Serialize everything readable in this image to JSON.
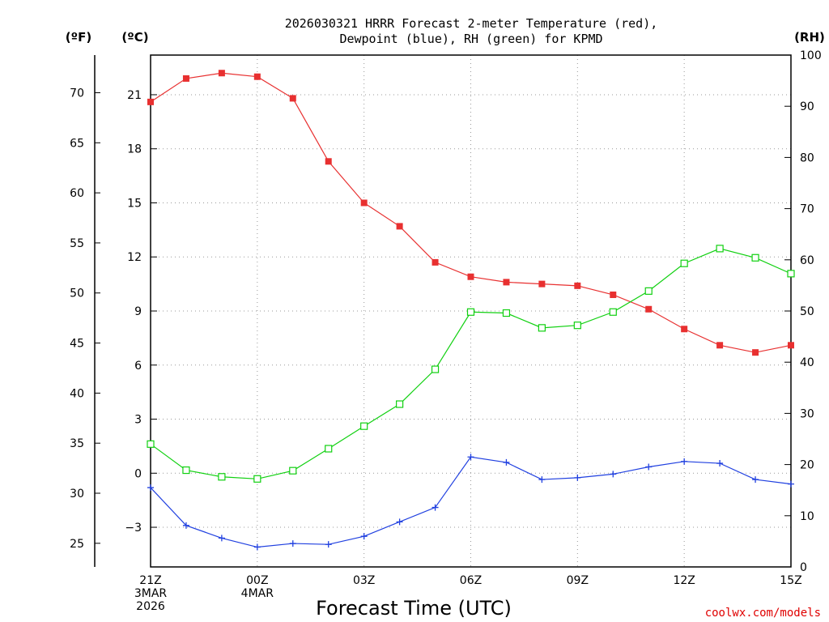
{
  "chart_data": {
    "type": "line",
    "title_line1": "2026030321 HRRR Forecast 2-meter Temperature (red),",
    "title_line2": "Dewpoint (blue), RH (green) for KPMD",
    "xlabel": "Forecast Time (UTC)",
    "credit": "coolwx.com/models",
    "unit_f": "(ºF)",
    "unit_c": "(ºC)",
    "unit_rh": "(RH)",
    "hours": [
      0,
      1,
      2,
      3,
      4,
      5,
      6,
      7,
      8,
      9,
      10,
      11,
      12,
      13,
      14,
      15,
      16,
      17,
      18
    ],
    "x_ticks": [
      {
        "hour": 0,
        "lines": [
          "21Z",
          "3MAR",
          "2026"
        ]
      },
      {
        "hour": 3,
        "lines": [
          "00Z",
          "4MAR"
        ]
      },
      {
        "hour": 6,
        "lines": [
          "03Z"
        ]
      },
      {
        "hour": 9,
        "lines": [
          "06Z"
        ]
      },
      {
        "hour": 12,
        "lines": [
          "09Z"
        ]
      },
      {
        "hour": 15,
        "lines": [
          "12Z"
        ]
      },
      {
        "hour": 18,
        "lines": [
          "15Z"
        ]
      }
    ],
    "celsius_ticks": [
      "-3",
      "0",
      "3",
      "6",
      "9",
      "12",
      "15",
      "18",
      "21"
    ],
    "fahrenheit_ticks": [
      "25",
      "30",
      "35",
      "40",
      "45",
      "50",
      "55",
      "60",
      "65",
      "70"
    ],
    "rh_ticks": [
      "0",
      "10",
      "20",
      "30",
      "40",
      "50",
      "60",
      "70",
      "80",
      "90",
      "100"
    ],
    "ylim_c": [
      -5.2,
      23.2
    ],
    "ylim_rh": [
      0,
      100
    ],
    "series": [
      {
        "name": "Temperature",
        "axis": "celsius",
        "color": "#e83030",
        "marker": "filled-square",
        "values": [
          20.6,
          21.9,
          22.2,
          22.0,
          20.8,
          17.3,
          15.0,
          13.7,
          11.7,
          10.9,
          10.6,
          10.5,
          10.4,
          9.9,
          9.1,
          8.0,
          7.1,
          6.7,
          7.1
        ]
      },
      {
        "name": "Dewpoint",
        "axis": "celsius",
        "color": "#2040e0",
        "marker": "plus",
        "values": [
          -0.8,
          -2.9,
          -3.6,
          -4.1,
          -3.9,
          -3.95,
          -3.5,
          -2.7,
          -1.9,
          0.9,
          0.6,
          -0.35,
          -0.25,
          -0.05,
          0.35,
          0.65,
          0.55,
          -0.35,
          -0.6
        ]
      },
      {
        "name": "RH",
        "axis": "rh",
        "color": "#10d010",
        "marker": "open-square",
        "values": [
          24.0,
          18.9,
          17.6,
          17.2,
          18.8,
          23.1,
          27.5,
          31.8,
          38.6,
          49.8,
          49.6,
          46.7,
          47.2,
          49.8,
          53.9,
          59.3,
          62.2,
          60.4,
          57.3
        ]
      }
    ]
  }
}
